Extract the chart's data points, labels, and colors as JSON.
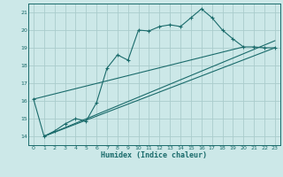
{
  "title": "",
  "xlabel": "Humidex (Indice chaleur)",
  "bg_color": "#cce8e8",
  "grid_color": "#aacccc",
  "line_color": "#1a6b6b",
  "xlim": [
    -0.5,
    23.5
  ],
  "ylim": [
    13.5,
    21.5
  ],
  "xticks": [
    0,
    1,
    2,
    3,
    4,
    5,
    6,
    7,
    8,
    9,
    10,
    11,
    12,
    13,
    14,
    15,
    16,
    17,
    18,
    19,
    20,
    21,
    22,
    23
  ],
  "yticks": [
    14,
    15,
    16,
    17,
    18,
    19,
    20,
    21
  ],
  "series1_x": [
    0,
    1,
    2,
    3,
    4,
    5,
    6,
    7,
    8,
    9,
    10,
    11,
    12,
    13,
    14,
    15,
    16,
    17,
    18,
    19,
    20,
    21,
    22,
    23
  ],
  "series1_y": [
    16.1,
    14.0,
    14.3,
    14.7,
    15.0,
    14.85,
    15.9,
    17.85,
    18.6,
    18.3,
    20.0,
    19.95,
    20.2,
    20.3,
    20.2,
    20.7,
    21.2,
    20.7,
    20.0,
    19.5,
    19.05,
    19.05,
    19.0,
    19.0
  ],
  "series2_x": [
    1,
    23
  ],
  "series2_y": [
    14.0,
    19.0
  ],
  "series3_x": [
    1,
    23
  ],
  "series3_y": [
    14.0,
    19.4
  ],
  "series4_x": [
    0,
    20
  ],
  "series4_y": [
    16.1,
    19.05
  ]
}
